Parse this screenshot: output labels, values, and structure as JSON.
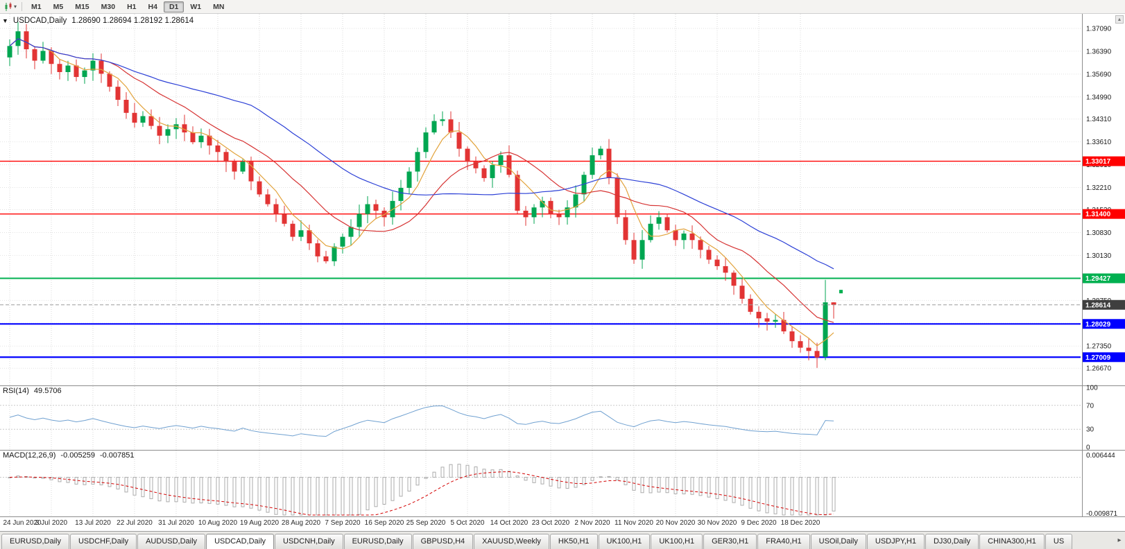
{
  "toolbar": {
    "timeframes": [
      "M1",
      "M5",
      "M15",
      "M30",
      "H1",
      "H4",
      "D1",
      "W1",
      "MN"
    ],
    "active": "D1"
  },
  "chart": {
    "title": {
      "symbol": "USDCAD,Daily",
      "ohlc": "1.28690 1.28694 1.28192 1.28614"
    },
    "price_axis_ticks": [
      "1.37090",
      "1.36390",
      "1.35690",
      "1.34990",
      "1.34310",
      "1.33610",
      "1.32910",
      "1.32210",
      "1.31530",
      "1.30830",
      "1.30130",
      "1.29430",
      "1.28750",
      "1.28050",
      "1.27350",
      "1.26670"
    ],
    "colors": {
      "bull": "#00A651",
      "bear": "#E23434",
      "rsi": "#6FA0D0",
      "macd_bar": "#ABABAB",
      "macd_signal": "#D40000",
      "current_line": "#9B9B9B",
      "current_badge": "#3F3F3F"
    }
  },
  "rsi": {
    "label": "RSI(14)",
    "value": "49.5706",
    "period": 14,
    "ticks": [
      "100",
      "70",
      "30",
      "0"
    ],
    "levels": [
      70,
      30
    ]
  },
  "macd": {
    "label": "MACD(12,26,9)",
    "main": "-0.005259",
    "signal": "-0.007851",
    "axis_max": "0.006444",
    "axis_min": "-0.009871",
    "fast": 12,
    "slow": 26,
    "signal_period": 9
  },
  "tabs": {
    "items": [
      "EURUSD,Daily",
      "USDCHF,Daily",
      "AUDUSD,Daily",
      "USDCAD,Daily",
      "USDCNH,Daily",
      "EURUSD,Daily",
      "GBPUSD,H4",
      "XAUUSD,Weekly",
      "HK50,H1",
      "UK100,H1",
      "UK100,H1",
      "GER30,H1",
      "FRA40,H1",
      "USOil,Daily",
      "USDJPY,H1",
      "DJ30,Daily",
      "CHINA300,H1",
      "US"
    ],
    "active_index": 3
  },
  "chart_data": {
    "type": "candlestick",
    "symbol": "USDCAD",
    "timeframe": "Daily",
    "x_labels": [
      "24 Jun 2020",
      "3 Jul 2020",
      "13 Jul 2020",
      "22 Jul 2020",
      "31 Jul 2020",
      "10 Aug 2020",
      "19 Aug 2020",
      "28 Aug 2020",
      "7 Sep 2020",
      "16 Sep 2020",
      "25 Sep 2020",
      "5 Oct 2020",
      "14 Oct 2020",
      "23 Oct 2020",
      "2 Nov 2020",
      "11 Nov 2020",
      "20 Nov 2020",
      "30 Nov 2020",
      "9 Dec 2020",
      "18 Dec 2020"
    ],
    "x_label_step": 5,
    "ylim": [
      1.2625,
      1.3745
    ],
    "closes": [
      1.3655,
      1.37,
      1.3645,
      1.361,
      1.364,
      1.36,
      1.3575,
      1.3595,
      1.356,
      1.358,
      1.361,
      1.357,
      1.353,
      1.349,
      1.345,
      1.342,
      1.344,
      1.341,
      1.338,
      1.34,
      1.3415,
      1.339,
      1.336,
      1.338,
      1.335,
      1.333,
      1.33,
      1.327,
      1.33,
      1.324,
      1.32,
      1.317,
      1.314,
      1.311,
      1.307,
      1.309,
      1.305,
      1.301,
      1.2995,
      1.304,
      1.307,
      1.31,
      1.314,
      1.317,
      1.315,
      1.313,
      1.318,
      1.322,
      1.327,
      1.333,
      1.339,
      1.3425,
      1.343,
      1.339,
      1.334,
      1.33,
      1.328,
      1.325,
      1.329,
      1.332,
      1.326,
      1.315,
      1.313,
      1.316,
      1.318,
      1.314,
      1.313,
      1.316,
      1.32,
      1.326,
      1.332,
      1.334,
      1.325,
      1.313,
      1.306,
      1.3,
      1.306,
      1.311,
      1.313,
      1.309,
      1.306,
      1.308,
      1.306,
      1.303,
      1.3,
      1.298,
      1.296,
      1.292,
      1.288,
      1.284,
      1.282,
      1.281,
      1.2815,
      1.278,
      1.275,
      1.273,
      1.272,
      1.27,
      1.2869,
      1.28614
    ],
    "candle_overrides": {
      "97": [
        1.272,
        1.2745,
        1.2668,
        1.27
      ],
      "98": [
        1.2702,
        1.2938,
        1.2692,
        1.2869
      ],
      "99": [
        1.2869,
        1.28694,
        1.28192,
        1.28614
      ]
    },
    "levels": [
      {
        "price": 1.33017,
        "label": "1.33017",
        "color": "#FF0000",
        "width": 1.4
      },
      {
        "price": 1.314,
        "label": "1.31400",
        "color": "#FF0000",
        "width": 1.4
      },
      {
        "price": 1.29427,
        "label": "1.29427",
        "color": "#00B050",
        "width": 2
      },
      {
        "price": 1.28029,
        "label": "1.28029",
        "color": "#0000FF",
        "width": 2.2
      },
      {
        "price": 1.27009,
        "label": "1.27009",
        "color": "#0000FF",
        "width": 2.2
      }
    ],
    "current_price": {
      "value": 1.28614,
      "label": "1.28614"
    },
    "marker": {
      "price": 1.2902,
      "color": "#00B050"
    },
    "moving_averages": [
      {
        "period": 5,
        "color": "#E2A33C"
      },
      {
        "period": 13,
        "color": "#D63333"
      },
      {
        "period": 30,
        "color": "#2B3FD6"
      }
    ]
  }
}
